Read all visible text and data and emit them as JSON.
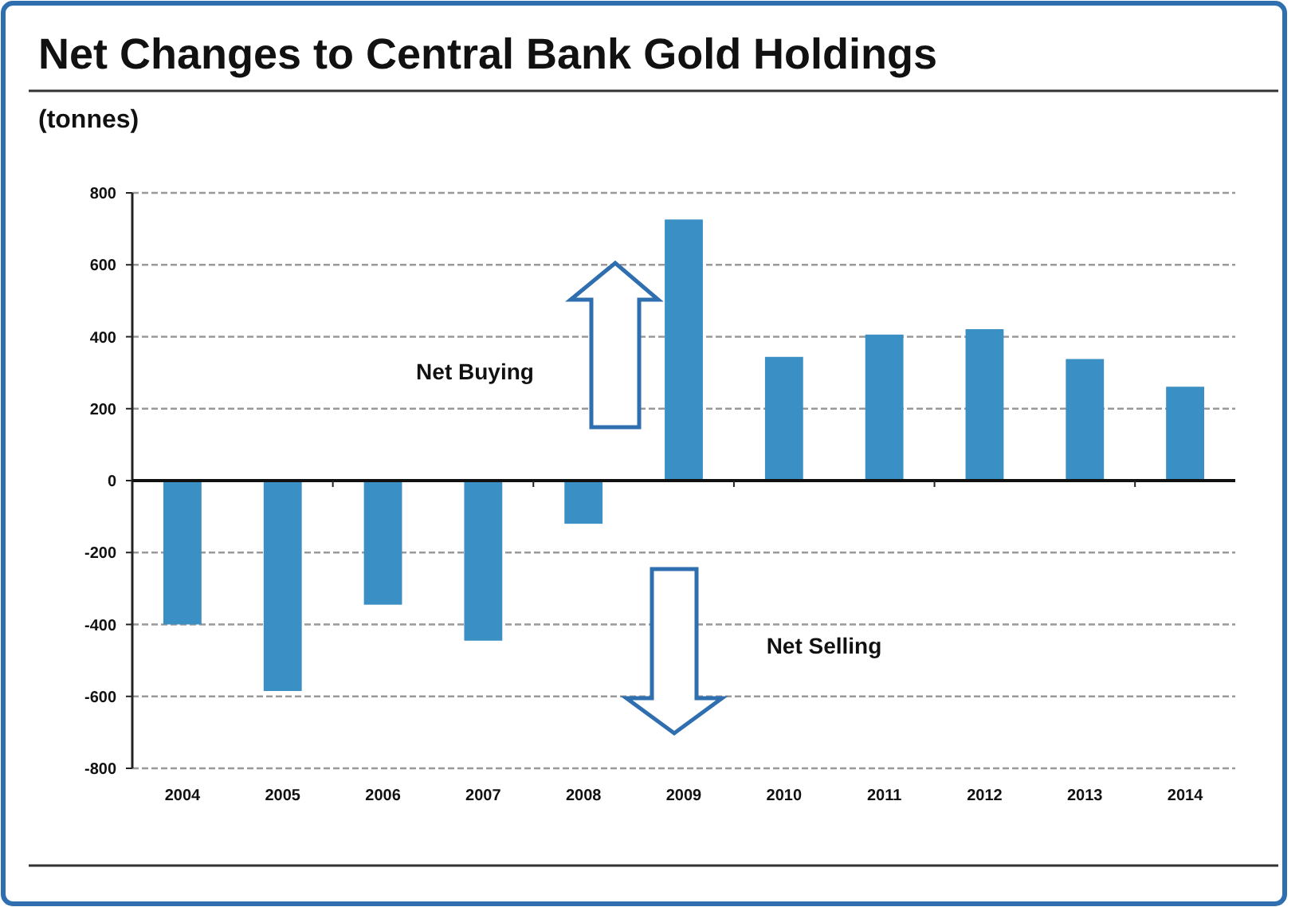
{
  "chart_data": {
    "type": "bar",
    "title": "Net Changes to Central Bank Gold Holdings",
    "ylabel": "(tonnes)",
    "categories": [
      "2004",
      "2005",
      "2006",
      "2007",
      "2008",
      "2009",
      "2010",
      "2011",
      "2012",
      "2013",
      "2014"
    ],
    "values": [
      -400,
      -585,
      -345,
      -445,
      -120,
      726,
      344,
      406,
      421,
      338,
      261
    ],
    "color": "#3a8fc4",
    "ylim": [
      -800,
      800
    ],
    "yticks": [
      -800,
      -600,
      -400,
      -200,
      0,
      200,
      400,
      600,
      800
    ],
    "grid": "y",
    "annotations": [
      "Net Buying",
      "Net Selling"
    ]
  }
}
